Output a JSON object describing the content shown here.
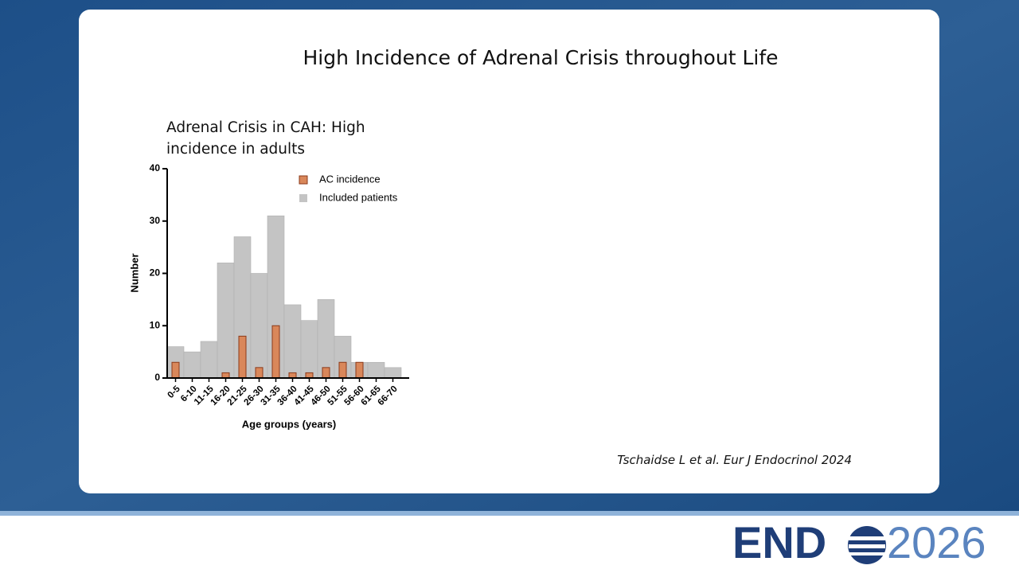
{
  "slide": {
    "title": "High Incidence of Adrenal Crisis throughout Life",
    "citation": "Tschaidse L et al. Eur J Endocrinol 2024"
  },
  "logo": {
    "word": "END",
    "year": "2026"
  },
  "chart_data": {
    "type": "bar",
    "title": "Adrenal Crisis in CAH: High incidence in adults",
    "x_label": "Age groups (years)",
    "y_label": "Number",
    "categories": [
      "0-5",
      "6-10",
      "11-15",
      "16-20",
      "21-25",
      "26-30",
      "31-35",
      "36-40",
      "41-45",
      "46-50",
      "51-55",
      "56-60",
      "61-65",
      "66-70"
    ],
    "series": [
      {
        "name": "AC incidence",
        "color": "#d9875a",
        "values": [
          3,
          0,
          0,
          1,
          8,
          2,
          10,
          1,
          1,
          2,
          3,
          3,
          0,
          0
        ]
      },
      {
        "name": "Included patients",
        "color": "#c4c4c4",
        "values": [
          6,
          5,
          7,
          22,
          27,
          20,
          31,
          14,
          11,
          15,
          8,
          3,
          3,
          2
        ]
      }
    ],
    "ylim": [
      0,
      40
    ],
    "yticks": [
      0,
      10,
      20,
      30,
      40
    ],
    "legend": "top-right"
  }
}
